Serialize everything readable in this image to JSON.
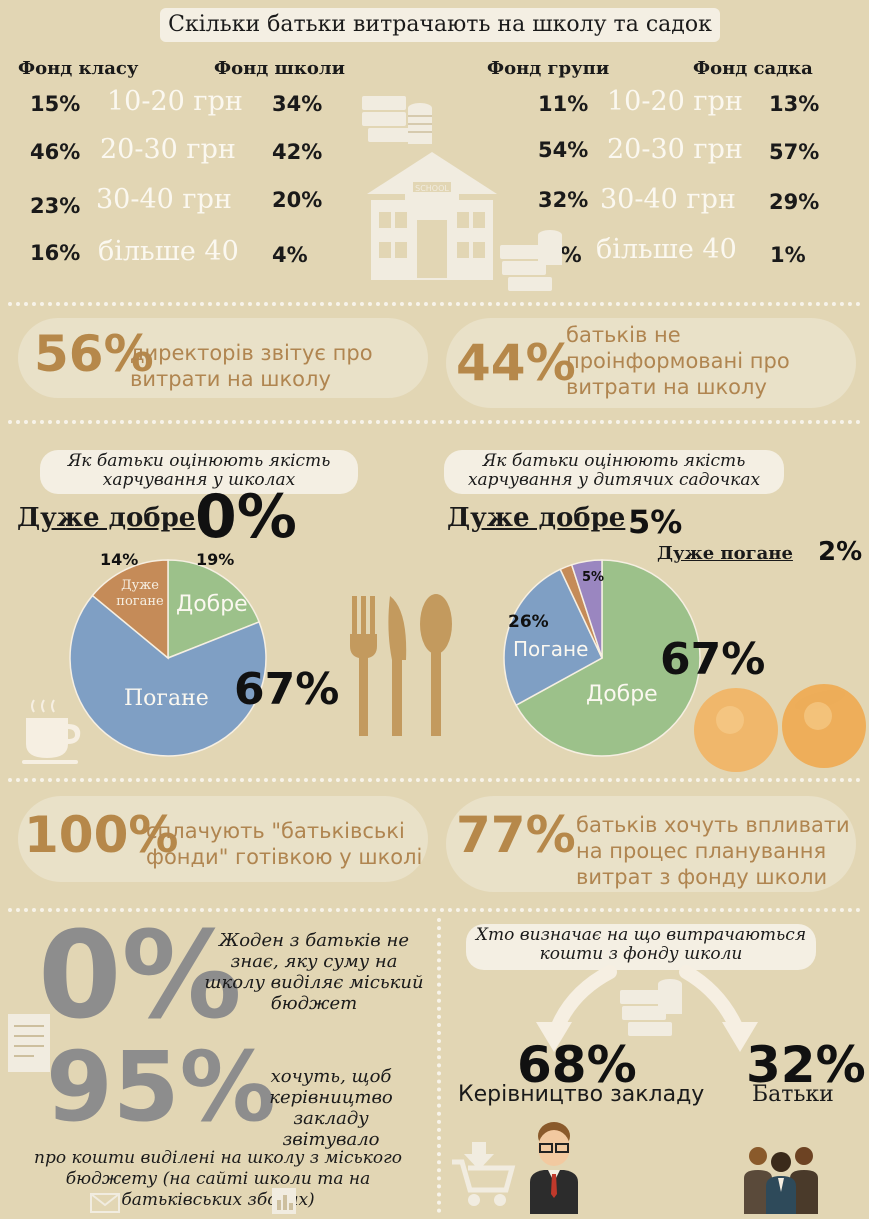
{
  "title": "Скільки батьки витрачають на школу та садок",
  "school_fees": {
    "col1_header": "Фонд класу",
    "col2_header": "Фонд школи",
    "rows": [
      {
        "a": "15%",
        "range": "10-20 грн",
        "b": "34%"
      },
      {
        "a": "46%",
        "range": "20-30 грн",
        "b": "42%"
      },
      {
        "a": "23%",
        "range": "30-40 грн",
        "b": "20%"
      },
      {
        "a": "16%",
        "range": "більше 40",
        "b": "4%"
      }
    ]
  },
  "kinder_fees": {
    "col1_header": "Фонд групи",
    "col2_header": "Фонд садка",
    "rows": [
      {
        "a": "11%",
        "range": "10-20 грн",
        "b": "13%"
      },
      {
        "a": "54%",
        "range": "20-30 грн",
        "b": "57%"
      },
      {
        "a": "32%",
        "range": "30-40 грн",
        "b": "29%"
      },
      {
        "a": "3%",
        "range": "більше 40",
        "b": "1%"
      }
    ]
  },
  "stat_directors": {
    "value": "56%",
    "text": "директорів звітує про витрати на школу"
  },
  "stat_uninformed": {
    "value": "44%",
    "text": "батьків не проінформовані про витрати на школу"
  },
  "school_food": {
    "question": "Як батьки оцінюють якість харчування у школах",
    "very_good_label": "Дуже добре",
    "very_good_value": "0%"
  },
  "kinder_food": {
    "question": "Як батьки оцінюють якість харчування у дитячих садочках",
    "very_good_label": "Дуже добре",
    "very_good_value": "5%",
    "very_bad_label": "Дуже погане",
    "very_bad_value": "2%"
  },
  "chart_data": [
    {
      "type": "pie",
      "title": "Як батьки оцінюють якість харчування у школах",
      "categories": [
        "Дуже добре",
        "Добре",
        "Погане",
        "Дуже погане"
      ],
      "values": [
        0,
        19,
        67,
        14
      ],
      "slice_labels": [
        "",
        "Добре",
        "Погане",
        "Дуже погане"
      ],
      "value_labels": [
        "0%",
        "19%",
        "67%",
        "14%"
      ],
      "colors": [
        "#8aa86b",
        "#9cc18a",
        "#7f9fc4",
        "#c58b58"
      ]
    },
    {
      "type": "pie",
      "title": "Як батьки оцінюють якість харчування у дитячих садочках",
      "categories": [
        "Дуже добре",
        "Добре",
        "Погане",
        "Дуже погане"
      ],
      "values": [
        5,
        67,
        26,
        2
      ],
      "slice_labels": [
        "",
        "Добре",
        "Погане",
        ""
      ],
      "value_labels": [
        "5%",
        "67%",
        "26%",
        "2%"
      ],
      "colors": [
        "#9a86c0",
        "#9cc18a",
        "#7f9fc4",
        "#c58b58"
      ]
    }
  ],
  "stat_cash": {
    "value": "100%",
    "text": "сплачують \"батьківські фонди\" готівкою у школі"
  },
  "stat_influence": {
    "value": "77%",
    "text": "батьків хочуть впливати на процес планування витрат з фонду школи"
  },
  "stat_none_know": {
    "value": "0%",
    "text": "Жоден з батьків не знає, яку суму на школу виділяє міський бюджет"
  },
  "stat_report": {
    "value": "95%",
    "text": "хочуть, щоб керівництво закладу звітувало",
    "subtext": "про кошти виділені на школу з міського бюджету (на сайті школи та на батьківських зборах)"
  },
  "who_decides": {
    "question": "Хто визначає на що витрачаються кошти з фонду школи",
    "admin_value": "68%",
    "admin_label": "Керівництво закладу",
    "parents_value": "32%",
    "parents_label": "Батьки"
  },
  "icons": [
    "money-stack-icon",
    "school-building-icon",
    "coffee-cup-icon",
    "cutlery-icon",
    "oranges-icon",
    "document-icon",
    "cart-icon",
    "businessman-icon",
    "parents-group-icon",
    "chart-doc-icon",
    "envelope-icon"
  ]
}
